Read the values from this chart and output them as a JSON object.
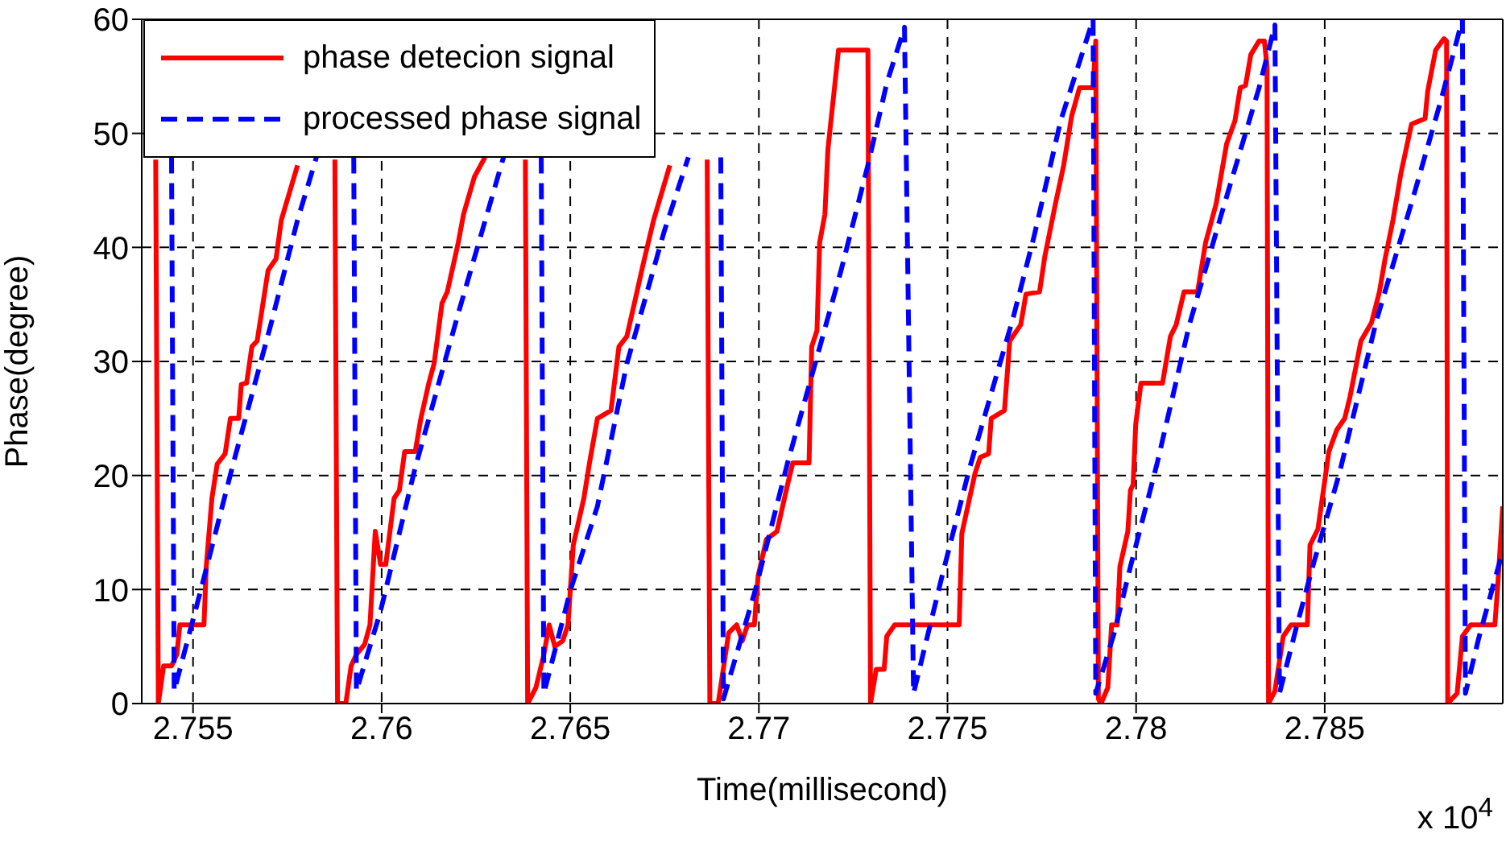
{
  "chart_data": {
    "type": "line",
    "xlabel": "Time(millisecond)",
    "ylabel": "Phase(degree)",
    "annotations": [
      "x 10$^{4}$"
    ],
    "xlim": [
      2.75364,
      2.78972
    ],
    "xticks": [
      2.755,
      2.76,
      2.765,
      2.77,
      2.775,
      2.78,
      2.785
    ],
    "ylim": [
      0,
      60
    ],
    "yticks": [
      0,
      10,
      20,
      30,
      40,
      50,
      60
    ],
    "grid": true,
    "legend": "top left",
    "series": [
      {
        "name": "phase detecion signal",
        "color": "#ff0000",
        "line_style": "solid",
        "x": [
          2.75401,
          2.75408,
          2.75422,
          2.75443,
          2.75457,
          2.75465,
          2.75529,
          2.75535,
          2.7555,
          2.75564,
          2.75585,
          2.75599,
          2.75621,
          2.75628,
          2.75642,
          2.75656,
          2.7567,
          2.75699,
          2.7572,
          2.75734,
          2.75777,
          null,
          2.75876,
          2.75883,
          2.75905,
          2.75919,
          2.75933,
          2.75955,
          2.75969,
          2.75983,
          2.75997,
          2.76011,
          2.76033,
          2.76047,
          2.76061,
          2.76089,
          2.76104,
          2.76125,
          2.76139,
          2.7616,
          2.76174,
          2.76203,
          2.76217,
          2.76246,
          2.76274,
          null,
          2.76381,
          2.76387,
          2.76409,
          2.7643,
          2.76444,
          2.76459,
          2.7648,
          2.76494,
          2.76508,
          2.76536,
          2.76551,
          2.76572,
          2.76608,
          2.76629,
          2.7665,
          2.76672,
          2.76693,
          2.76721,
          2.76764,
          null,
          2.76863,
          2.7687,
          2.76892,
          2.7692,
          2.76941,
          2.76956,
          2.7697,
          2.76988,
          2.76998,
          2.7702,
          2.77048,
          2.77076,
          2.7709,
          2.77133,
          2.7714,
          2.77154,
          2.77161,
          2.77175,
          2.77183,
          2.77211,
          2.77289,
          2.77296,
          2.77311,
          2.77332,
          2.77339,
          2.7736,
          2.77531,
          2.77538,
          2.77573,
          2.77587,
          2.77609,
          2.77616,
          2.77651,
          2.77665,
          2.77694,
          2.77708,
          2.77744,
          2.77758,
          2.77786,
          2.77808,
          2.77829,
          2.7785,
          2.77886,
          2.77893,
          2.779,
          2.77907,
          2.77925,
          2.77935,
          2.7795,
          2.77957,
          2.77978,
          2.77985,
          2.77992,
          2.77999,
          2.78013,
          2.7807,
          2.78091,
          2.78106,
          2.78127,
          2.78163,
          2.78184,
          2.78212,
          2.7824,
          2.78262,
          2.78276,
          2.7829,
          2.78304,
          2.78326,
          2.7834,
          2.78347,
          2.78351,
          2.78368,
          2.7839,
          2.78411,
          2.78454,
          2.78461,
          2.78482,
          2.78511,
          2.78532,
          2.78553,
          2.78567,
          2.78596,
          2.78624,
          2.78645,
          2.7866,
          2.78681,
          2.78702,
          2.7873,
          2.78766,
          2.78773,
          2.78794,
          2.78816,
          2.78823,
          2.78826,
          2.78851,
          2.78865,
          2.78887,
          2.78951,
          2.78958,
          2.78972
        ],
        "values": [
          47.7,
          0,
          3.3,
          3.3,
          4.3,
          6.9,
          6.9,
          12,
          18,
          21,
          21.9,
          25,
          25,
          28,
          28.1,
          31.3,
          31.8,
          38,
          39,
          42.4,
          47.2,
          null,
          47.7,
          0,
          0,
          3.3,
          4.3,
          5.2,
          6.9,
          15.1,
          12.2,
          12.2,
          18,
          18.7,
          22.1,
          22.1,
          25,
          28.1,
          29.8,
          35.1,
          36.1,
          40.4,
          42.9,
          46.2,
          47.9,
          null,
          47.7,
          0,
          1.4,
          4.3,
          6.9,
          5,
          5.5,
          6.9,
          13.9,
          18,
          21.1,
          25,
          25.7,
          31.3,
          32.2,
          35.4,
          38.5,
          42.4,
          47.2,
          null,
          47.7,
          0,
          0,
          6.2,
          6.9,
          5.5,
          6.9,
          6.9,
          11.2,
          14.4,
          15.1,
          19.2,
          21.1,
          21.1,
          31.3,
          32.7,
          40.4,
          42.9,
          48.6,
          57.3,
          57.3,
          0,
          3,
          3,
          5.9,
          6.9,
          6.9,
          14.9,
          20.2,
          21.6,
          21.9,
          25,
          25.7,
          31.8,
          33.2,
          35.9,
          36.1,
          39.2,
          43.8,
          47.2,
          51.5,
          54,
          54,
          58.1,
          0.4,
          0,
          1.4,
          6.9,
          6.9,
          12,
          15.1,
          18.7,
          19.2,
          24.5,
          28.1,
          28.1,
          32.2,
          33.2,
          36.1,
          36.1,
          40.4,
          43.8,
          49.1,
          51.1,
          54,
          54.2,
          56.9,
          58.1,
          58.1,
          55.9,
          0,
          1.1,
          5.9,
          6.9,
          6.9,
          13.9,
          15.3,
          22.1,
          24,
          25,
          26.9,
          31.8,
          33.4,
          36.1,
          39,
          42.4,
          46.5,
          50.8,
          51.3,
          53.7,
          57.3,
          58.3,
          58.1,
          0,
          0.9,
          5.9,
          6.9,
          6.9,
          10,
          17.3
        ]
      },
      {
        "name": "processed phase signal",
        "color": "#0000ff",
        "line_style": "dashed",
        "x": [
          2.75443,
          2.7545,
          2.75521,
          2.75607,
          2.75706,
          2.75777,
          2.75827,
          null,
          2.75926,
          2.75933,
          2.75997,
          2.76089,
          2.76203,
          2.76323,
          null,
          2.76423,
          2.7643,
          2.76501,
          2.76572,
          2.7665,
          2.76749,
          2.76813,
          null,
          2.76899,
          2.76906,
          2.76991,
          2.77076,
          2.77218,
          2.77289,
          2.77339,
          2.77386,
          2.7741,
          2.77488,
          2.77559,
          2.77673,
          2.77729,
          2.778,
          2.77886,
          2.77893,
          2.77942,
          2.77985,
          2.78056,
          2.78141,
          2.78226,
          2.78326,
          2.78368,
          2.7838,
          2.78425,
          2.78468,
          2.78539,
          2.78638,
          2.78738,
          2.78809,
          2.78865,
          2.78873,
          2.78908,
          2.78972
        ],
        "values": [
          47.9,
          1.1,
          10,
          21.1,
          33.2,
          42.4,
          47.9,
          null,
          47.9,
          1.1,
          8.1,
          20.7,
          34.2,
          47.9,
          null,
          47.9,
          0.9,
          10,
          17.3,
          29.8,
          41.4,
          47.9,
          null,
          47.9,
          0.4,
          10,
          21.1,
          38,
          47.2,
          54.4,
          59.3,
          0.9,
          11.5,
          20.7,
          33.7,
          40.9,
          51.1,
          60,
          0.9,
          6.2,
          12,
          21.1,
          33.2,
          42.9,
          54,
          59.5,
          0.9,
          6.7,
          12,
          20.2,
          33.7,
          44.8,
          53,
          60,
          0.9,
          5.7,
          13.4
        ]
      }
    ]
  }
}
